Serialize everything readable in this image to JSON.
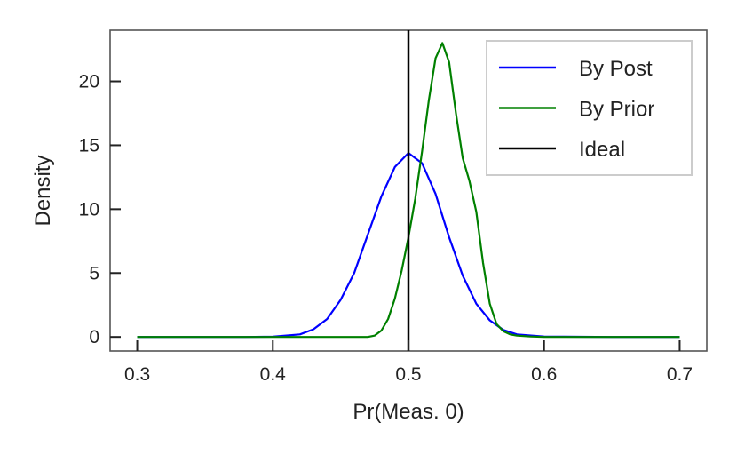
{
  "chart_data": {
    "type": "line",
    "title": "",
    "xlabel": "Pr(Meas. 0)",
    "ylabel": "Density",
    "xlim": [
      0.28,
      0.72
    ],
    "ylim": [
      -1.1,
      24.0
    ],
    "xticks": [
      0.3,
      0.4,
      0.5,
      0.6,
      0.7
    ],
    "xtick_labels": [
      "0.3",
      "0.4",
      "0.5",
      "0.6",
      "0.7"
    ],
    "yticks": [
      0,
      5,
      10,
      15,
      20
    ],
    "ytick_labels": [
      "0",
      "5",
      "10",
      "15",
      "20"
    ],
    "grid": false,
    "legend_position": "top-right",
    "series": [
      {
        "name": "By Post",
        "color": "#0000ff",
        "x": [
          0.3,
          0.38,
          0.4,
          0.42,
          0.43,
          0.44,
          0.45,
          0.46,
          0.47,
          0.48,
          0.49,
          0.5,
          0.51,
          0.52,
          0.53,
          0.54,
          0.55,
          0.56,
          0.57,
          0.58,
          0.6,
          0.65,
          0.7
        ],
        "y": [
          0,
          0,
          0.02,
          0.2,
          0.6,
          1.4,
          2.9,
          5.0,
          8.0,
          11.0,
          13.3,
          14.4,
          13.6,
          11.2,
          7.8,
          4.8,
          2.6,
          1.3,
          0.55,
          0.2,
          0.03,
          0,
          0
        ]
      },
      {
        "name": "By Prior",
        "color": "#008000",
        "x": [
          0.3,
          0.4,
          0.47,
          0.475,
          0.48,
          0.485,
          0.49,
          0.495,
          0.5,
          0.505,
          0.51,
          0.515,
          0.52,
          0.525,
          0.53,
          0.535,
          0.54,
          0.545,
          0.55,
          0.555,
          0.56,
          0.565,
          0.57,
          0.575,
          0.58,
          0.59,
          0.6,
          0.7
        ],
        "y": [
          0,
          0,
          0,
          0.1,
          0.5,
          1.4,
          3.0,
          5.2,
          7.8,
          10.8,
          14.5,
          18.5,
          21.8,
          23.0,
          21.5,
          17.5,
          14.0,
          12.2,
          9.8,
          5.8,
          2.6,
          1.0,
          0.45,
          0.2,
          0.1,
          0.03,
          0,
          0
        ]
      }
    ],
    "vlines": [
      {
        "name": "Ideal",
        "x": 0.5,
        "color": "#000000"
      }
    ]
  }
}
